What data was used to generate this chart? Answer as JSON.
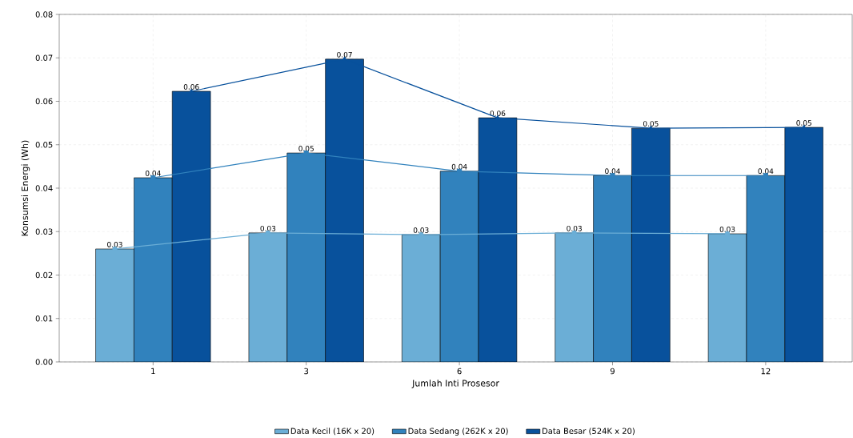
{
  "chart_data": {
    "type": "bar",
    "xlabel": "Jumlah Inti Prosesor",
    "ylabel": "Konsumsi Energi (Wh)",
    "categories": [
      "1",
      "3",
      "6",
      "9",
      "12"
    ],
    "series": [
      {
        "name": "Data Kecil (16K x 20)",
        "color": "#6baed6",
        "values": [
          0.026,
          0.0297,
          0.0293,
          0.0297,
          0.0295
        ],
        "value_labels": [
          "0.03",
          "0.03",
          "0.03",
          "0.03",
          "0.03"
        ]
      },
      {
        "name": "Data Sedang (262K x 20)",
        "color": "#3182bd",
        "values": [
          0.0424,
          0.0481,
          0.0439,
          0.0429,
          0.0429
        ],
        "value_labels": [
          "0.04",
          "0.05",
          "0.04",
          "0.04",
          "0.04"
        ]
      },
      {
        "name": "Data Besar (524K x 20)",
        "color": "#08519c",
        "values": [
          0.0623,
          0.0697,
          0.0562,
          0.0538,
          0.054
        ],
        "value_labels": [
          "0.06",
          "0.07",
          "0.06",
          "0.05",
          "0.05"
        ]
      },
      {
        "type": "line",
        "marker": "circle",
        "color": "#6baed6",
        "values": [
          0.026,
          0.0297,
          0.0293,
          0.0297,
          0.0295
        ]
      },
      {
        "type": "line",
        "marker": "square",
        "color": "#3182bd",
        "values": [
          0.0424,
          0.0481,
          0.0439,
          0.0429,
          0.0429
        ]
      },
      {
        "type": "line",
        "marker": "triangle",
        "color": "#08519c",
        "values": [
          0.0623,
          0.0697,
          0.0562,
          0.0538,
          0.054
        ]
      }
    ],
    "ylim": [
      0,
      0.08
    ],
    "yticks": [
      {
        "value": 0,
        "label": "0.00"
      },
      {
        "value": 0.01,
        "label": "0.01"
      },
      {
        "value": 0.02,
        "label": "0.02"
      },
      {
        "value": 0.03,
        "label": "0.03"
      },
      {
        "value": 0.04,
        "label": "0.04"
      },
      {
        "value": 0.05,
        "label": "0.05"
      },
      {
        "value": 0.06,
        "label": "0.06"
      },
      {
        "value": 0.07,
        "label": "0.07"
      },
      {
        "value": 0.08,
        "label": "0.08"
      }
    ],
    "grid": true,
    "legend": "bottom"
  }
}
